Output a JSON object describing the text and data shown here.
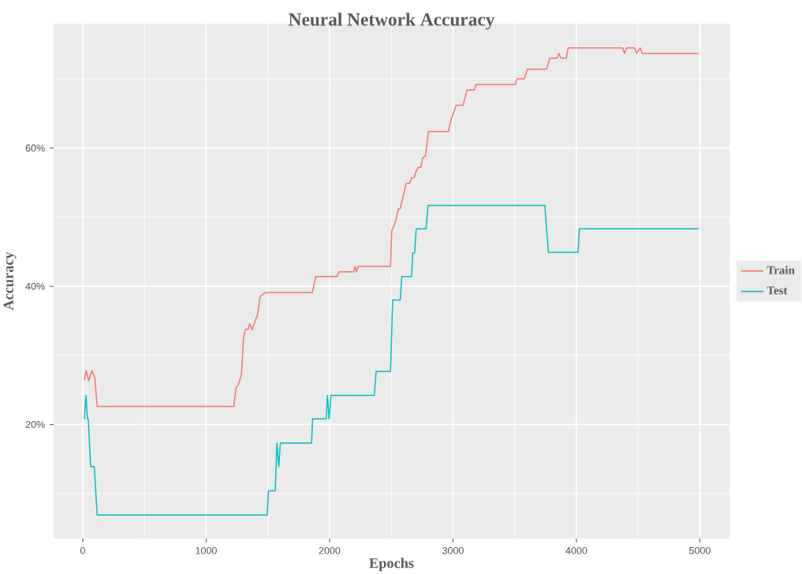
{
  "chart_data": {
    "type": "line",
    "title": "Neural Network Accuracy",
    "xlabel": "Epochs",
    "ylabel": "Accuracy",
    "xlim": [
      -236,
      5240
    ],
    "ylim": [
      3.5,
      78
    ],
    "xticks": [
      0,
      {
        "value": 500,
        "label": null
      },
      1000,
      {
        "value": 1500,
        "label": null
      },
      2000,
      {
        "value": 2500,
        "label": null
      },
      3000,
      {
        "value": 3500,
        "label": null
      },
      4000,
      {
        "value": 4500,
        "label": null
      },
      5000
    ],
    "yticks": [
      {
        "value": 10,
        "label": null
      },
      {
        "value": 20,
        "label": "20%"
      },
      {
        "value": 30,
        "label": null
      },
      {
        "value": 40,
        "label": "40%"
      },
      {
        "value": 50,
        "label": null
      },
      {
        "value": 60,
        "label": "60%"
      },
      {
        "value": 70,
        "label": null
      }
    ],
    "grid": true,
    "legend": "right",
    "line_style": "solid",
    "series": [
      {
        "name": "Train",
        "color": "#f8766d",
        "x": [
          13,
          28,
          49,
          75,
          98,
          117,
          1224,
          1242,
          1259,
          1286,
          1303,
          1318,
          1339,
          1352,
          1373,
          1405,
          1416,
          1437,
          1480,
          1860,
          1888,
          2060,
          2075,
          2196,
          2207,
          2217,
          2232,
          2494,
          2504,
          2526,
          2536,
          2557,
          2572,
          2621,
          2649,
          2664,
          2685,
          2696,
          2717,
          2738,
          2755,
          2776,
          2802,
          2962,
          2983,
          3025,
          3082,
          3114,
          3174,
          3185,
          3503,
          3518,
          3578,
          3603,
          3758,
          3784,
          3843,
          3858,
          3874,
          3918,
          3933,
          4375,
          4390,
          4407,
          4471,
          4488,
          4517,
          4534,
          4991
        ],
        "values": [
          26.4,
          27.8,
          26.3,
          27.8,
          26.7,
          22.6,
          22.6,
          25.3,
          25.7,
          27.2,
          32.5,
          33.8,
          33.8,
          34.6,
          33.7,
          35.4,
          35.8,
          38.5,
          39.1,
          39.1,
          41.4,
          41.4,
          42.1,
          42.1,
          42.9,
          42.1,
          42.9,
          42.9,
          48.1,
          48.9,
          49.5,
          51.2,
          51.2,
          54.9,
          54.9,
          55.7,
          55.7,
          56.4,
          57.2,
          57.2,
          58.6,
          58.8,
          62.4,
          62.4,
          64.0,
          66.2,
          66.2,
          68.4,
          68.4,
          69.2,
          69.2,
          70.0,
          70.0,
          71.4,
          71.4,
          73.0,
          73.0,
          73.7,
          73.0,
          73.0,
          74.5,
          74.5,
          73.7,
          74.5,
          74.5,
          73.7,
          74.5,
          73.7,
          73.7
        ]
      },
      {
        "name": "Test",
        "color": "#00bfc4",
        "x": [
          13,
          26,
          38,
          45,
          64,
          93,
          117,
          1494,
          1505,
          1560,
          1573,
          1588,
          1601,
          1854,
          1862,
          1973,
          1983,
          1996,
          2011,
          2362,
          2377,
          2494,
          2511,
          2572,
          2585,
          2664,
          2674,
          2689,
          2702,
          2781,
          2798,
          3744,
          3758,
          3773,
          4013,
          4024,
          4991
        ],
        "values": [
          20.8,
          24.2,
          20.8,
          20.8,
          13.9,
          13.9,
          6.9,
          6.9,
          10.4,
          10.4,
          17.3,
          13.9,
          17.3,
          17.3,
          20.8,
          20.8,
          24.2,
          20.8,
          24.2,
          24.2,
          27.7,
          27.7,
          38.0,
          38.0,
          41.4,
          41.4,
          44.8,
          44.8,
          48.3,
          48.3,
          51.7,
          51.7,
          48.3,
          44.9,
          44.9,
          48.3,
          48.3
        ]
      }
    ]
  }
}
